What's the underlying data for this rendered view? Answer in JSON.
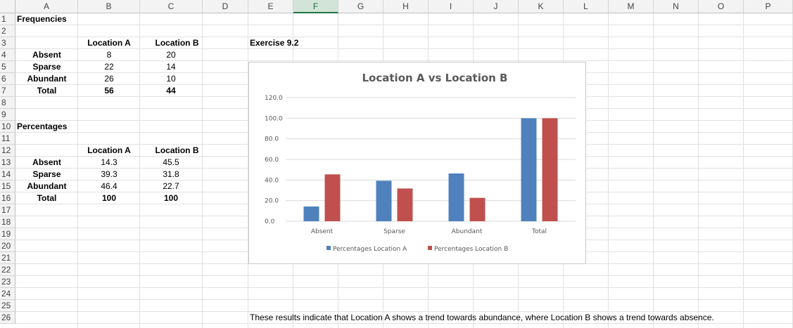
{
  "columns": [
    "A",
    "B",
    "C",
    "D",
    "E",
    "F",
    "G",
    "H",
    "I",
    "J",
    "K",
    "L",
    "M",
    "N",
    "O",
    "P"
  ],
  "selected_column": "F",
  "rows": [
    "1",
    "2",
    "3",
    "4",
    "5",
    "6",
    "7",
    "8",
    "9",
    "10",
    "11",
    "12",
    "13",
    "14",
    "15",
    "16",
    "17",
    "18",
    "19",
    "20",
    "21",
    "22",
    "23",
    "24",
    "25",
    "26"
  ],
  "frequencies": {
    "heading": "Frequencies",
    "col_headers": [
      "Location A",
      "Location B"
    ],
    "rows": [
      {
        "label": "Absent",
        "a": "8",
        "b": "20"
      },
      {
        "label": "Sparse",
        "a": "22",
        "b": "14"
      },
      {
        "label": "Abundant",
        "a": "26",
        "b": "10"
      },
      {
        "label": "Total",
        "a": "56",
        "b": "44"
      }
    ]
  },
  "percentages": {
    "heading": "Percentages",
    "col_headers": [
      "Location A",
      "Location B"
    ],
    "rows": [
      {
        "label": "Absent",
        "a": "14.3",
        "b": "45.5"
      },
      {
        "label": "Sparse",
        "a": "39.3",
        "b": "31.8"
      },
      {
        "label": "Abundant",
        "a": "46.4",
        "b": "22.7"
      },
      {
        "label": "Total",
        "a": "100",
        "b": "100"
      }
    ]
  },
  "exercise_label": "Exercise 9.2",
  "conclusion": "These results indicate that Location A shows a trend towards abundance, where Location B shows a trend towards absence.",
  "chart_data": {
    "type": "bar",
    "title": "Location A vs Location B",
    "categories": [
      "Absent",
      "Sparse",
      "Abundant",
      "Total"
    ],
    "series": [
      {
        "name": "Percentages Location A",
        "values": [
          14.3,
          39.3,
          46.4,
          100
        ],
        "color": "#4f81bd"
      },
      {
        "name": "Percentages Location B",
        "values": [
          45.5,
          31.8,
          22.7,
          100
        ],
        "color": "#c0504d"
      }
    ],
    "yticks": [
      "0.0",
      "20.0",
      "40.0",
      "60.0",
      "80.0",
      "100.0",
      "120.0"
    ],
    "ylim": [
      0,
      120
    ],
    "grid": true,
    "legend": "bottom"
  }
}
